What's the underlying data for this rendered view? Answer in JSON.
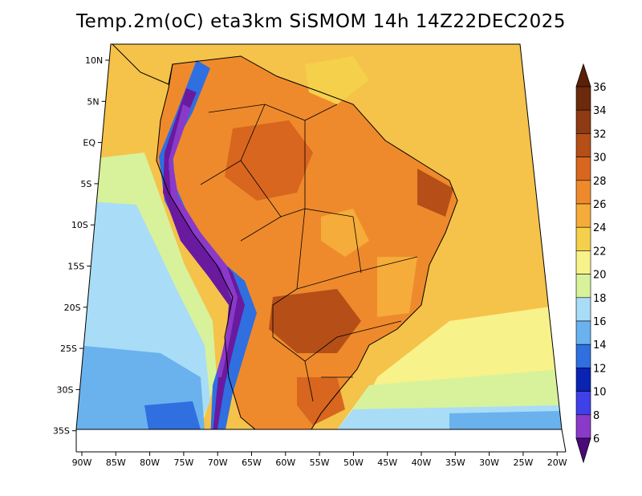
{
  "title": "Temp.2m(oC) eta3km SiSMOM 14h 14Z22DEC2025",
  "lat_ticks": [
    "10N",
    "5N",
    "EQ",
    "5S",
    "10S",
    "15S",
    "20S",
    "25S",
    "30S",
    "35S"
  ],
  "lon_ticks": [
    "90W",
    "85W",
    "80W",
    "75W",
    "70W",
    "65W",
    "60W",
    "55W",
    "50W",
    "45W",
    "40W",
    "35W",
    "30W",
    "25W",
    "20W"
  ],
  "colorbar": {
    "labels": [
      "36",
      "34",
      "32",
      "30",
      "28",
      "26",
      "24",
      "22",
      "20",
      "18",
      "16",
      "14",
      "12",
      "10",
      "8",
      "6"
    ],
    "colors": [
      "#6b2a0c",
      "#8e3a12",
      "#b54f17",
      "#d8661e",
      "#ee8a2c",
      "#f5ac3a",
      "#f5d04a",
      "#f8f28a",
      "#d7f29b",
      "#a9dcf7",
      "#6ab2ee",
      "#2f6fe0",
      "#0a23b3",
      "#4040e8",
      "#8a3ac8",
      "#6a1a9e"
    ],
    "top_color": "#5a2008",
    "bottom_color": "#4a0a7a"
  }
}
